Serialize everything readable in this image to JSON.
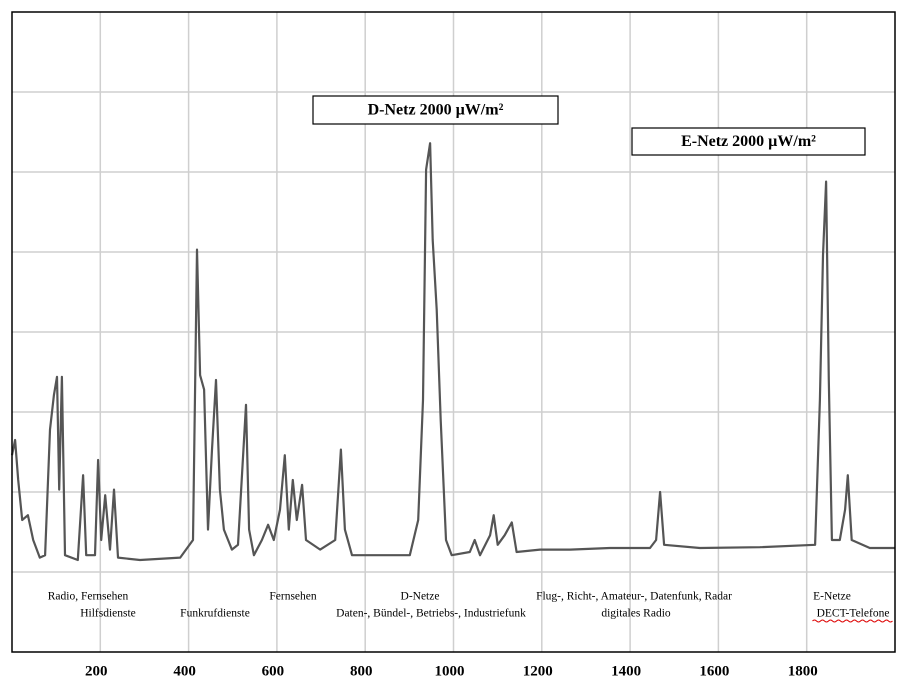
{
  "chart_data": {
    "type": "line",
    "x": [
      0,
      7,
      14,
      23,
      36,
      48,
      63,
      75,
      86,
      95,
      102,
      107,
      113,
      120,
      149,
      161,
      168,
      188,
      195,
      202,
      211,
      222,
      231,
      240,
      290,
      381,
      410,
      419,
      426,
      435,
      444,
      453,
      462,
      471,
      480,
      498,
      512,
      530,
      537,
      548,
      566,
      580,
      593,
      607,
      618,
      627,
      636,
      645,
      657,
      666,
      698,
      732,
      745,
      754,
      770,
      811,
      901,
      920,
      931,
      938,
      947,
      953,
      962,
      971,
      983,
      996,
      1037,
      1048,
      1060,
      1083,
      1091,
      1100,
      1116,
      1132,
      1143,
      1196,
      1264,
      1354,
      1445,
      1459,
      1468,
      1477,
      1558,
      1694,
      1819,
      1830,
      1837,
      1844,
      1850,
      1857,
      1875,
      1887,
      1893,
      1902,
      1943,
      2000
    ],
    "series": [
      {
        "color": "#555555",
        "values": [
          2.46,
          2.65,
          2.15,
          1.65,
          1.71,
          1.4,
          1.18,
          1.21,
          2.78,
          3.21,
          3.44,
          2.03,
          3.44,
          1.21,
          1.15,
          2.21,
          1.21,
          1.21,
          2.4,
          1.4,
          1.96,
          1.28,
          2.03,
          1.18,
          1.15,
          1.18,
          1.4,
          5.03,
          3.46,
          3.28,
          1.53,
          2.53,
          3.4,
          2.03,
          1.53,
          1.28,
          1.34,
          3.09,
          1.53,
          1.21,
          1.4,
          1.59,
          1.4,
          1.78,
          2.46,
          1.53,
          2.15,
          1.65,
          2.09,
          1.4,
          1.28,
          1.4,
          2.53,
          1.53,
          1.21,
          1.21,
          1.21,
          1.65,
          3.15,
          6.03,
          6.36,
          5.15,
          4.28,
          2.9,
          1.4,
          1.21,
          1.25,
          1.4,
          1.21,
          1.46,
          1.71,
          1.34,
          1.46,
          1.62,
          1.25,
          1.28,
          1.28,
          1.3,
          1.3,
          1.4,
          2.0,
          1.34,
          1.3,
          1.31,
          1.34,
          3.15,
          4.96,
          5.88,
          3.4,
          1.4,
          1.4,
          1.78,
          2.21,
          1.4,
          1.3,
          1.3
        ]
      }
    ],
    "xlim": [
      0,
      2000
    ],
    "xticks": [
      200,
      400,
      600,
      800,
      1000,
      1200,
      1400,
      1600,
      1800
    ],
    "ylim": [
      0,
      8
    ],
    "yticks": [
      1,
      2,
      3,
      4,
      5,
      6,
      7
    ],
    "grid": true,
    "annotations": [
      "D-Netz 2000 µW/m²",
      "E-Netz 2000 µW/m²"
    ],
    "band_labels": [
      [
        "Radio, Fernsehen",
        "Fernsehen",
        "D-Netze",
        "Flug-, Richt-, Amateur-, Datenfunk, Radar",
        "E-Netze"
      ],
      [
        "Hilfsdienste",
        "Funkrufdienste",
        "Daten-, Bündel-, Betriebs-, Industriefunk",
        "digitales Radio",
        "DECT-Telefone"
      ]
    ]
  }
}
